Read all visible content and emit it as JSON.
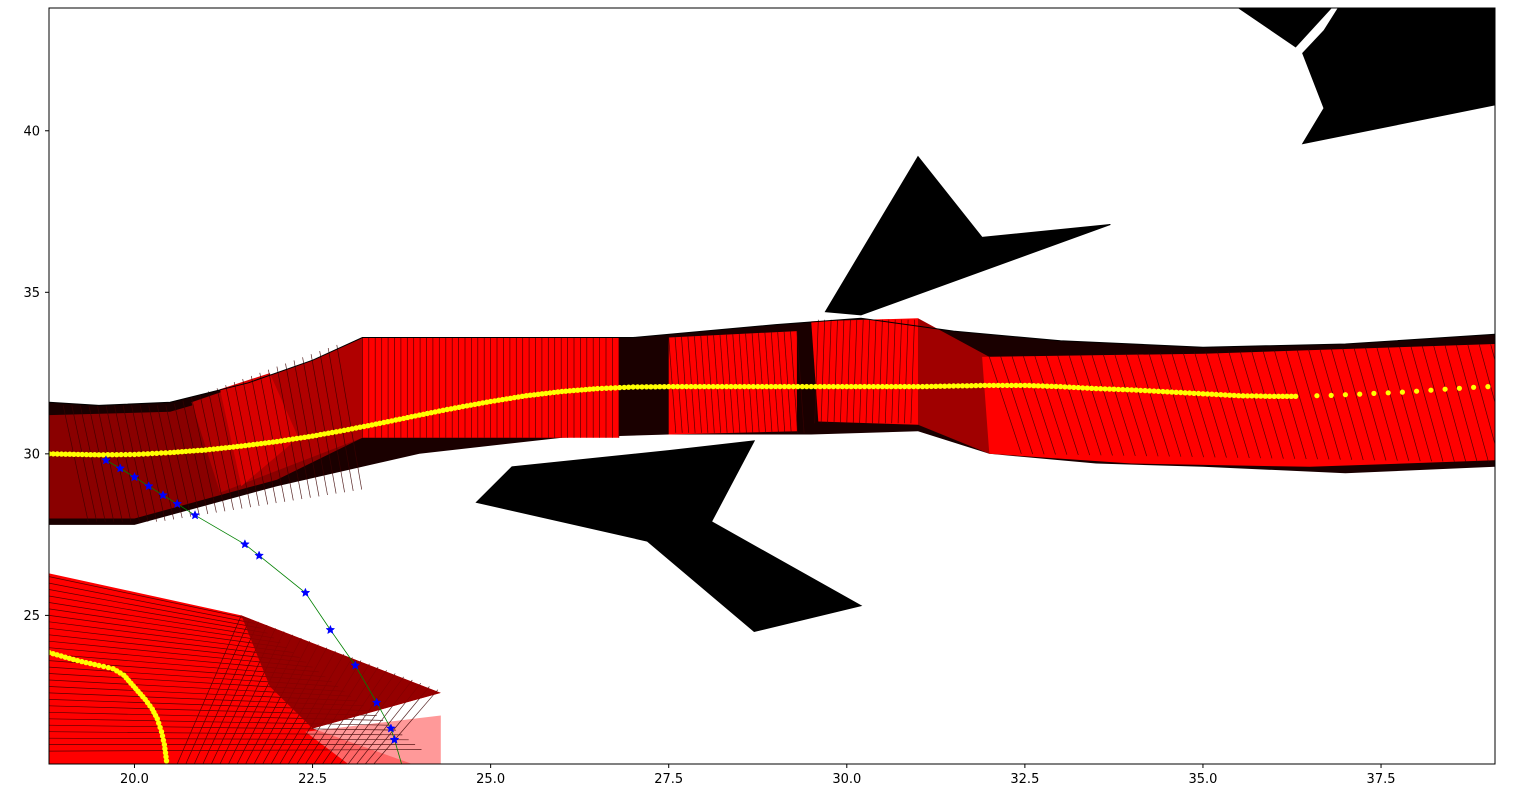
{
  "chart_data": {
    "type": "scatter",
    "title": "",
    "xlabel": "",
    "ylabel": "",
    "xlim": [
      18.8,
      39.1
    ],
    "ylim": [
      20.4,
      43.8
    ],
    "grid": false,
    "x_ticks": [
      20.0,
      22.5,
      25.0,
      27.5,
      30.0,
      32.5,
      35.0,
      37.5
    ],
    "x_tick_labels": [
      "20.0",
      "22.5",
      "25.0",
      "27.5",
      "30.0",
      "32.5",
      "35.0",
      "37.5"
    ],
    "y_ticks": [
      25,
      30,
      35,
      40
    ],
    "y_tick_labels": [
      "25",
      "30",
      "35",
      "40"
    ],
    "colors": {
      "obstacle": "#000000",
      "footprint": "#ff0000",
      "footprint_edge": "#3a0000",
      "reference_path": "#ffff00",
      "trajectory_marker": "#0000ff",
      "trajectory_line": "#008000"
    },
    "obstacles": [
      [
        [
          24.8,
          28.5
        ],
        [
          25.3,
          29.6
        ],
        [
          27.5,
          30.1
        ],
        [
          28.7,
          30.4
        ],
        [
          28.1,
          27.9
        ],
        [
          30.2,
          25.3
        ],
        [
          28.7,
          24.5
        ],
        [
          27.2,
          27.3
        ]
      ],
      [
        [
          29.7,
          34.4
        ],
        [
          31.0,
          39.2
        ],
        [
          31.9,
          36.7
        ],
        [
          33.7,
          37.1
        ],
        [
          30.2,
          34.3
        ]
      ],
      [
        [
          35.5,
          43.8
        ],
        [
          36.3,
          42.6
        ],
        [
          36.8,
          43.8
        ]
      ],
      [
        [
          36.9,
          43.8
        ],
        [
          36.7,
          43.1
        ],
        [
          36.4,
          42.4
        ],
        [
          36.7,
          40.7
        ],
        [
          36.4,
          39.6
        ],
        [
          39.1,
          40.8
        ],
        [
          39.1,
          43.8
        ]
      ]
    ],
    "road_upper": {
      "top": [
        [
          18.8,
          31.6
        ],
        [
          19.5,
          31.5
        ],
        [
          20.5,
          31.6
        ],
        [
          21.6,
          32.2
        ],
        [
          22.5,
          32.9
        ],
        [
          23.2,
          33.6
        ],
        [
          27.0,
          33.6
        ],
        [
          29.0,
          34.0
        ],
        [
          30.2,
          34.2
        ],
        [
          31.5,
          33.8
        ],
        [
          33.0,
          33.5
        ],
        [
          35.0,
          33.3
        ],
        [
          37.0,
          33.4
        ],
        [
          39.1,
          33.7
        ]
      ],
      "bottom": [
        [
          39.1,
          29.6
        ],
        [
          37.0,
          29.4
        ],
        [
          35.0,
          29.6
        ],
        [
          33.5,
          29.7
        ],
        [
          32.0,
          30.0
        ],
        [
          31.0,
          30.7
        ],
        [
          29.5,
          30.6
        ],
        [
          27.5,
          30.6
        ],
        [
          26.0,
          30.5
        ],
        [
          24.0,
          30.0
        ],
        [
          22.0,
          29.0
        ],
        [
          20.0,
          27.8
        ],
        [
          18.8,
          27.8
        ]
      ],
      "bright_band": [
        [
          23.2,
          33.6
        ],
        [
          26.8,
          33.6
        ],
        [
          26.8,
          30.5
        ],
        [
          23.2,
          30.5
        ]
      ],
      "bright_band_2": [
        [
          27.5,
          33.6
        ],
        [
          29.3,
          33.8
        ],
        [
          29.3,
          30.7
        ],
        [
          27.5,
          30.6
        ]
      ],
      "bright_band_3": [
        [
          29.5,
          34.1
        ],
        [
          31.0,
          34.2
        ],
        [
          31.0,
          30.9
        ],
        [
          29.6,
          31.0
        ]
      ],
      "bright_band_4": [
        [
          31.9,
          33.0
        ],
        [
          35.0,
          33.1
        ],
        [
          39.1,
          33.4
        ],
        [
          39.1,
          29.8
        ],
        [
          36.5,
          29.6
        ],
        [
          34.0,
          29.7
        ],
        [
          32.0,
          30.0
        ]
      ]
    },
    "road_lower": {
      "outline": [
        [
          18.8,
          26.3
        ],
        [
          21.5,
          25.0
        ],
        [
          24.3,
          22.6
        ],
        [
          22.5,
          21.5
        ],
        [
          23.9,
          20.4
        ],
        [
          18.8,
          20.4
        ]
      ],
      "ghost_edge": [
        [
          22.4,
          21.4
        ],
        [
          24.3,
          21.9
        ],
        [
          24.3,
          20.4
        ],
        [
          23.0,
          20.4
        ]
      ]
    },
    "reference_path_upper": {
      "x": [
        18.8,
        19.5,
        20.0,
        20.5,
        21.0,
        21.5,
        22.0,
        22.5,
        23.0,
        23.5,
        24.0,
        24.5,
        25.0,
        25.5,
        26.0,
        26.5,
        27.0,
        27.5,
        28.0,
        28.5,
        29.0,
        29.5,
        30.0,
        30.5,
        31.0,
        31.5,
        32.0,
        32.5,
        33.0,
        33.5,
        34.0,
        34.5,
        35.0,
        35.5,
        36.0,
        36.3
      ],
      "y": [
        30.0,
        29.97,
        29.98,
        30.04,
        30.12,
        30.24,
        30.38,
        30.55,
        30.75,
        30.97,
        31.2,
        31.42,
        31.62,
        31.8,
        31.93,
        32.02,
        32.07,
        32.08,
        32.08,
        32.08,
        32.08,
        32.08,
        32.08,
        32.08,
        32.08,
        32.1,
        32.12,
        32.12,
        32.08,
        32.02,
        31.98,
        31.92,
        31.86,
        31.8,
        31.78,
        31.78
      ]
    },
    "reference_path_sparse": {
      "x": [
        36.6,
        36.8,
        37.0,
        37.2,
        37.4,
        37.6,
        37.8,
        38.0,
        38.2,
        38.4,
        38.6,
        38.8,
        39.0
      ],
      "y": [
        31.8,
        31.81,
        31.83,
        31.85,
        31.87,
        31.89,
        31.91,
        31.94,
        31.97,
        32.0,
        32.03,
        32.06,
        32.08
      ]
    },
    "reference_path_lower": {
      "x": [
        18.8,
        19.2,
        19.5,
        19.7,
        19.85,
        19.95,
        20.05,
        20.15,
        20.25,
        20.32,
        20.38,
        20.42,
        20.45
      ],
      "y": [
        23.85,
        23.6,
        23.45,
        23.35,
        23.15,
        22.9,
        22.65,
        22.4,
        22.1,
        21.8,
        21.4,
        21.0,
        20.5
      ]
    },
    "trajectory": {
      "x": [
        19.6,
        19.8,
        20.0,
        20.2,
        20.4,
        20.6,
        20.85,
        21.55,
        21.75,
        22.4,
        22.75,
        23.1,
        23.4,
        23.6,
        23.65
      ],
      "y": [
        29.8,
        29.55,
        29.28,
        29.0,
        28.72,
        28.45,
        28.1,
        27.2,
        26.85,
        25.7,
        24.55,
        23.45,
        22.3,
        21.5,
        21.15
      ]
    }
  }
}
